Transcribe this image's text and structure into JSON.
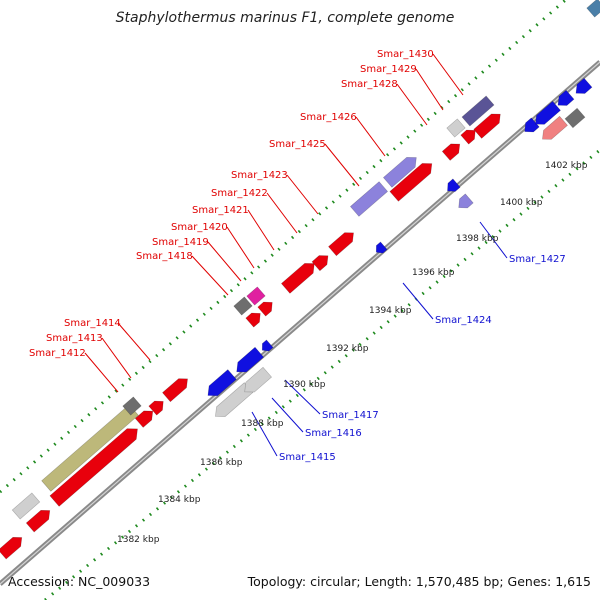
{
  "title": "Staphylothermus marinus F1, complete genome",
  "footer": {
    "accession": "Accession: NC_009033",
    "summary": "Topology: circular; Length: 1,570,485 bp; Genes: 1,615"
  },
  "colors": {
    "forward_label": "#e00000",
    "reverse_label": "#1010d0",
    "forward_gene": "#e8000c",
    "reverse_gene": "#1010e0",
    "backbone": "#8a8a8a",
    "tick_dots": "#1f8a1f",
    "olive": "#bdb87a",
    "light_gray": "#cfcfcf",
    "dark_gray": "#6e6e6e",
    "lavender": "#8c82dc",
    "slate": "#5a5496",
    "magenta": "#e020a0",
    "salmon": "#f08080",
    "steel": "#4a7fa8"
  },
  "ticks": [
    "1382 kbp",
    "1384 kbp",
    "1386 kbp",
    "1388 kbp",
    "1390 kbp",
    "1392 kbp",
    "1394 kbp",
    "1396 kbp",
    "1398 kbp",
    "1400 kbp",
    "1402 kbp"
  ],
  "forward_labels": [
    "Smar_1412",
    "Smar_1413",
    "Smar_1414",
    "Smar_1418",
    "Smar_1419",
    "Smar_1420",
    "Smar_1421",
    "Smar_1422",
    "Smar_1423",
    "Smar_1425",
    "Smar_1426",
    "Smar_1428",
    "Smar_1429",
    "Smar_1430"
  ],
  "reverse_labels": [
    "Smar_1415",
    "Smar_1416",
    "Smar_1417",
    "Smar_1424",
    "Smar_1427"
  ]
}
